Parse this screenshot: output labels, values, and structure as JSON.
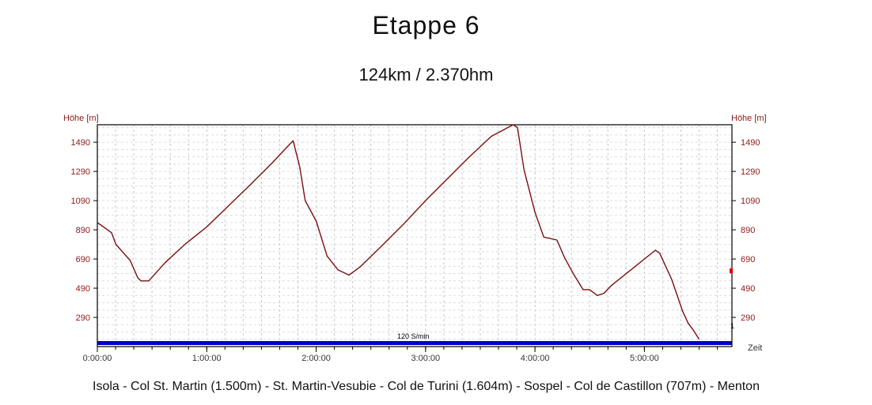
{
  "header": {
    "title": "Etappe  6",
    "subtitle": "124km / 2.370hm"
  },
  "footer": {
    "route": "Isola - Col St. Martin (1.500m) - St. Martin-Vesubie - Col de Turini (1.604m) - Sospel - Col de Castillon (707m) - Menton"
  },
  "chart_data": {
    "type": "line",
    "ylabel_left": "Höhe [m]",
    "ylabel_right": "Höhe [m]",
    "xlabel": "Zeit",
    "speed_band_label": "120 S/min",
    "right_marker_label": "1",
    "ylim": [
      90,
      1610
    ],
    "xlim": [
      0,
      5.8
    ],
    "y_ticks": [
      290,
      490,
      690,
      890,
      1090,
      1290,
      1490
    ],
    "x_ticks": [
      {
        "value": 0,
        "label": "0:00:00"
      },
      {
        "value": 1,
        "label": "1:00:00"
      },
      {
        "value": 2,
        "label": "2:00:00"
      },
      {
        "value": 3,
        "label": "3:00:00"
      },
      {
        "value": 4,
        "label": "4:00:00"
      },
      {
        "value": 5,
        "label": "5:00:00"
      }
    ],
    "grid": true,
    "colors": {
      "line": "#7a0f0f",
      "axis_text": "#8b1a1a",
      "band": "#0000cc",
      "marker": "#dd0000",
      "grid": "#c8c8c8"
    },
    "series": [
      {
        "x": [
          0,
          0.13,
          0.17,
          0.3,
          0.37,
          0.4,
          0.47,
          0.5,
          0.62,
          0.8,
          1.0,
          1.2,
          1.4,
          1.6,
          1.75,
          1.79,
          1.85,
          1.9,
          2.0,
          2.1,
          2.2,
          2.3,
          2.4,
          2.6,
          2.8,
          3.0,
          3.2,
          3.4,
          3.6,
          3.8,
          3.84,
          3.9,
          4.0,
          4.08,
          4.2,
          4.27,
          4.35,
          4.44,
          4.5,
          4.57,
          4.63,
          4.7,
          4.9,
          5.1,
          5.14,
          5.25,
          5.35,
          5.4,
          5.45,
          5.5
        ],
        "y": [
          940,
          870,
          790,
          680,
          560,
          540,
          540,
          565,
          665,
          790,
          910,
          1055,
          1200,
          1350,
          1470,
          1500,
          1320,
          1090,
          950,
          710,
          615,
          580,
          635,
          780,
          930,
          1090,
          1240,
          1390,
          1530,
          1610,
          1590,
          1300,
          1010,
          840,
          820,
          700,
          590,
          480,
          480,
          440,
          455,
          510,
          630,
          750,
          730,
          550,
          330,
          250,
          200,
          140
        ]
      }
    ]
  }
}
